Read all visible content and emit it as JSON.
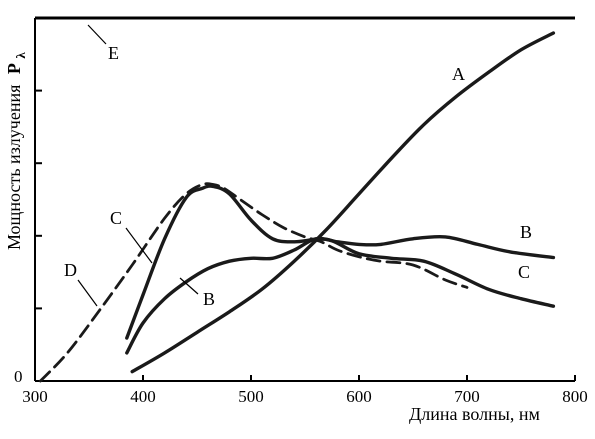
{
  "chart_data": {
    "type": "line",
    "xlabel": "Длина волны, нм",
    "ylabel_main": "Мощность излучения",
    "ylabel_symbol": "P",
    "ylabel_subscript": "λ",
    "xlim": [
      300,
      800
    ],
    "ylim": [
      0,
      10
    ],
    "x_ticks": [
      300,
      400,
      500,
      600,
      700,
      800
    ],
    "x_tick_labels": [
      "300",
      "400",
      "500",
      "600",
      "700",
      "800"
    ],
    "y_zero_label": "0",
    "y_ticks": [
      0,
      2,
      4,
      6,
      8,
      10
    ],
    "series": [
      {
        "name": "A",
        "style": "solid",
        "x": [
          390,
          420,
          450,
          480,
          510,
          540,
          570,
          600,
          630,
          660,
          690,
          720,
          750,
          780
        ],
        "y": [
          0.25,
          0.75,
          1.3,
          1.85,
          2.45,
          3.2,
          4.05,
          5.0,
          5.95,
          6.85,
          7.6,
          8.25,
          8.85,
          9.3
        ]
      },
      {
        "name": "B",
        "style": "solid",
        "x": [
          385,
          400,
          420,
          440,
          460,
          480,
          500,
          520,
          540,
          560,
          580,
          600,
          620,
          650,
          680,
          710,
          740,
          780
        ],
        "y": [
          0.75,
          1.55,
          2.2,
          2.65,
          3.0,
          3.2,
          3.28,
          3.28,
          3.5,
          3.8,
          3.72,
          3.65,
          3.65,
          3.8,
          3.85,
          3.65,
          3.45,
          3.3
        ]
      },
      {
        "name": "C",
        "style": "solid",
        "x": [
          385,
          400,
          420,
          440,
          455,
          465,
          480,
          500,
          520,
          540,
          560,
          575,
          600,
          630,
          660,
          690,
          720,
          750,
          780
        ],
        "y": [
          1.15,
          2.3,
          3.8,
          4.9,
          5.15,
          5.2,
          5.0,
          4.3,
          3.8,
          3.72,
          3.78,
          3.75,
          3.4,
          3.28,
          3.2,
          2.85,
          2.45,
          2.2,
          2.0
        ]
      },
      {
        "name": "D",
        "style": "dashed",
        "x": [
          305,
          330,
          360,
          390,
          420,
          440,
          455,
          465,
          475,
          490,
          510,
          530,
          550,
          565,
          580,
          600,
          620,
          650,
          680,
          700
        ],
        "y": [
          0.0,
          0.75,
          1.9,
          3.1,
          4.35,
          5.0,
          5.25,
          5.25,
          5.15,
          4.85,
          4.45,
          4.1,
          3.85,
          3.72,
          3.5,
          3.32,
          3.2,
          3.1,
          2.7,
          2.5
        ]
      },
      {
        "name": "E",
        "style": "solid",
        "x": [
          300,
          800
        ],
        "y": [
          9.7,
          9.7
        ]
      }
    ],
    "annotations": [
      {
        "text": "A",
        "target": "A"
      },
      {
        "text": "B",
        "target": "B"
      },
      {
        "text": "C",
        "target": "C"
      },
      {
        "text": "B",
        "target": "B-left"
      },
      {
        "text": "C",
        "target": "C-left"
      },
      {
        "text": "D",
        "target": "D"
      },
      {
        "text": "E",
        "target": "E"
      }
    ],
    "grid": false,
    "legend": "none"
  }
}
